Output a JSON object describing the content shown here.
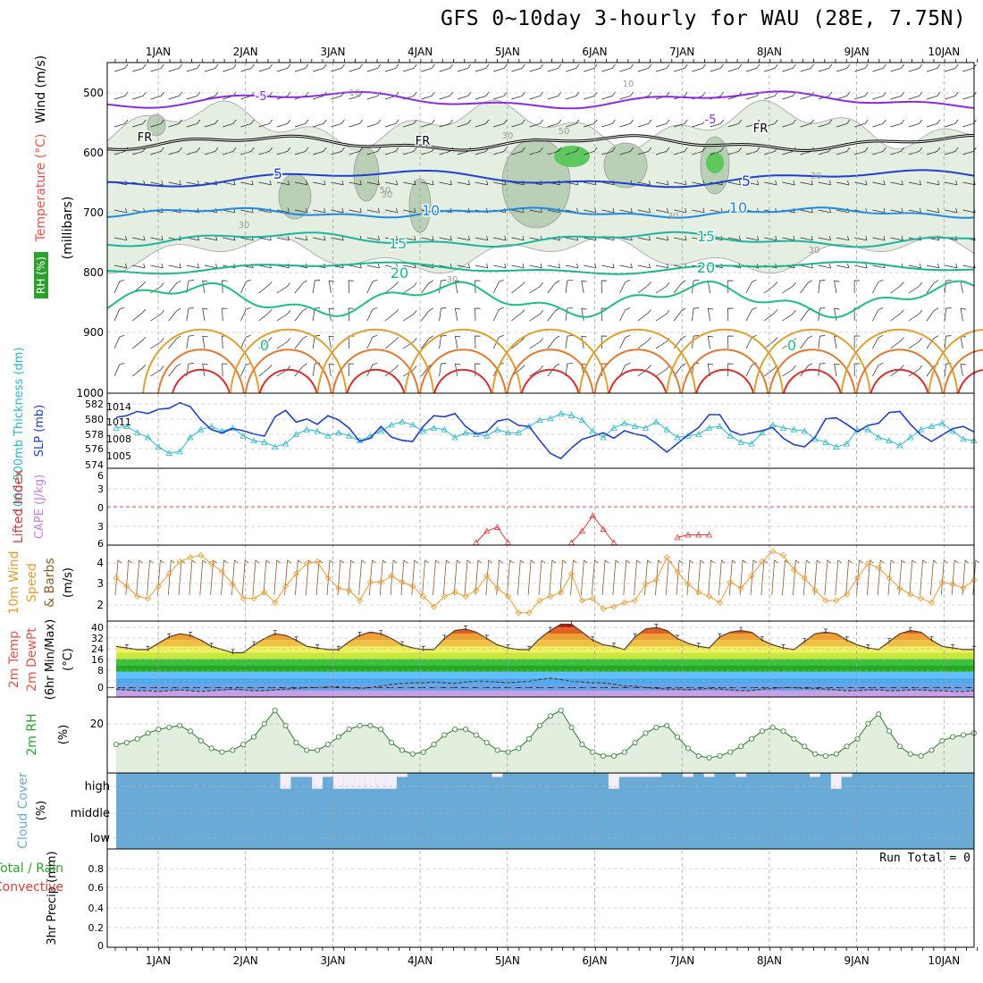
{
  "title": "GFS 0~10day 3-hourly for WAU (28E, 7.75N)",
  "days": [
    "1JAN",
    "2JAN",
    "3JAN",
    "4JAN",
    "5JAN",
    "6JAN",
    "7JAN",
    "8JAN",
    "9JAN",
    "10JAN"
  ],
  "colors": {
    "temperature_label": "#e8524a",
    "rh_label": "#2ca02c",
    "slp_line": "#1f3fc8",
    "thickness_line": "#29b8c8",
    "lifted_index": "#e03a3a",
    "cape_label": "#c080e0",
    "wind_speed_line": "#e89a30",
    "barb": "#8b5a2b",
    "cloud": "#6aaad6",
    "precip_total": "#2ca02c",
    "precip_conv": "#e03a3a"
  },
  "panels": {
    "upper": {
      "axis_title": "(millibars)",
      "label_wind": "Wind (m/s)",
      "label_temp": "Temperature (°C)",
      "label_rh": "RH (%)",
      "ticks": [
        "500",
        "600",
        "700",
        "800",
        "900",
        "1000"
      ],
      "contour_labels": [
        {
          "text": "-5"
        },
        {
          "text": "-5"
        },
        {
          "text": "FR"
        },
        {
          "text": "FR"
        },
        {
          "text": "FR"
        },
        {
          "text": "5"
        },
        {
          "text": "5"
        },
        {
          "text": "10"
        },
        {
          "text": "10"
        },
        {
          "text": "15"
        },
        {
          "text": "15"
        },
        {
          "text": "20"
        },
        {
          "text": "20"
        },
        {
          "text": "0"
        },
        {
          "text": "0"
        },
        {
          "text": "10"
        },
        {
          "text": "10"
        },
        {
          "text": "30"
        },
        {
          "text": "30"
        },
        {
          "text": "30"
        },
        {
          "text": "30"
        },
        {
          "text": "30"
        },
        {
          "text": "30"
        },
        {
          "text": "30"
        },
        {
          "text": "50"
        },
        {
          "text": "50"
        }
      ]
    },
    "slp": {
      "label_thickness": "1000-500mb Thickness (dm)",
      "label_slp": "SLP (mb)",
      "left_ticks": [
        "582",
        "580",
        "578",
        "576",
        "574"
      ],
      "right_ticks": [
        "1014",
        "1011",
        "1008",
        "1005"
      ]
    },
    "li": {
      "label_li": "Lifted Index",
      "label_cape": "CAPE (J/kg)",
      "ticks": [
        "6",
        "3",
        "0",
        "3",
        "6"
      ]
    },
    "wind10": {
      "label_a": "10m Wind",
      "label_b": "Speed",
      "label_c": "& Barbs",
      "units": "(m/s)",
      "ticks": [
        "4",
        "3",
        "2"
      ]
    },
    "temp2m": {
      "label_a": "2m Temp",
      "label_b": "2m DewPt",
      "label_c": "(6hr Min/Max)",
      "units": "(°C)",
      "ticks": [
        "40",
        "32",
        "24",
        "16",
        "8",
        "0"
      ]
    },
    "rh2m": {
      "label": "2m RH",
      "units": "(%)",
      "ticks": [
        "20"
      ]
    },
    "cloud": {
      "label": "Cloud Cover",
      "units": "(%)",
      "levels": [
        "high",
        "middle",
        "low"
      ]
    },
    "precip": {
      "label_a": "3hr Precip (mm)",
      "label_total": "Total / Rain",
      "label_conv": "Convective",
      "run_total": "Run Total = 0",
      "ticks": [
        "0",
        "0.2",
        "0.4",
        "0.6",
        "0.8"
      ]
    }
  },
  "chart_data": {
    "type": "line",
    "x_unit": "3-hourly steps starting 31DEC 18Z",
    "slp_mb": [
      1011.5,
      1011.8,
      1012.6,
      1012.2,
      1013.0,
      1013.2,
      1014.2,
      1013.5,
      1011.0,
      1009.2,
      1008.6,
      1009.4,
      1009.0,
      1008.4,
      1008.0,
      1011.6,
      1012.8,
      1010.6,
      1011.2,
      1010.2,
      1011.8,
      1011.0,
      1009.5,
      1007.0,
      1007.6,
      1009.8,
      1007.8,
      1007.2,
      1007.0,
      1009.8,
      1011.8,
      1011.6,
      1012.2,
      1009.8,
      1008.4,
      1008.8,
      1010.8,
      1011.2,
      1010.0,
      1009.8,
      1007.2,
      1004.8,
      1003.8,
      1005.8,
      1007.4,
      1008.0,
      1008.6,
      1007.6,
      1009.0,
      1008.4,
      1008.0,
      1006.6,
      1005.0,
      1006.6,
      1008.2,
      1009.6,
      1012.0,
      1012.0,
      1009.0,
      1008.2,
      1008.6,
      1009.0,
      1009.6,
      1007.6,
      1006.4,
      1006.0,
      1007.8,
      1011.2,
      1011.4,
      1010.2,
      1008.8,
      1010.0,
      1010.4,
      1012.4,
      1012.6,
      1010.2,
      1008.2,
      1007.0,
      1008.2,
      1009.4,
      1009.8,
      1008.8
    ],
    "thickness_dm": [
      578.6,
      578.8,
      578.0,
      577.4,
      576.2,
      575.4,
      575.6,
      577.4,
      578.4,
      578.8,
      578.2,
      578.6,
      577.6,
      577.0,
      576.8,
      576.2,
      576.6,
      577.8,
      578.4,
      578.2,
      577.6,
      578.0,
      577.6,
      577.0,
      577.6,
      578.2,
      579.0,
      579.4,
      579.0,
      578.2,
      578.6,
      578.4,
      577.4,
      578.0,
      577.8,
      577.6,
      578.4,
      578.0,
      578.0,
      578.8,
      579.6,
      579.8,
      580.4,
      580.2,
      579.6,
      578.2,
      577.4,
      578.6,
      579.2,
      578.8,
      578.6,
      579.4,
      578.4,
      577.4,
      577.6,
      577.8,
      578.6,
      578.8,
      577.6,
      576.8,
      576.6,
      578.0,
      579.0,
      578.6,
      578.4,
      578.2,
      577.2,
      576.8,
      576.2,
      576.6,
      578.4,
      578.4,
      577.4,
      577.0,
      576.4,
      577.4,
      578.4,
      578.8,
      579.2,
      578.2,
      577.2,
      577.0
    ],
    "wind10_ms": [
      3.3,
      2.9,
      2.4,
      2.3,
      2.9,
      3.5,
      4.1,
      4.3,
      4.4,
      4.0,
      3.6,
      3.0,
      2.3,
      2.3,
      2.6,
      2.1,
      2.9,
      3.5,
      4.0,
      4.1,
      3.3,
      2.8,
      2.7,
      2.2,
      3.1,
      3.1,
      3.4,
      3.1,
      2.9,
      2.4,
      1.9,
      2.4,
      2.6,
      2.4,
      2.7,
      3.4,
      2.8,
      2.4,
      1.6,
      1.6,
      2.2,
      2.4,
      2.6,
      3.5,
      2.2,
      2.3,
      1.8,
      1.9,
      2.1,
      2.2,
      3.0,
      3.2,
      4.3,
      3.6,
      3.0,
      2.6,
      2.4,
      2.1,
      3.1,
      2.8,
      3.4,
      4.1,
      4.6,
      4.4,
      3.7,
      3.3,
      2.7,
      2.2,
      2.2,
      2.5,
      3.3,
      4.0,
      3.8,
      3.3,
      2.8,
      2.5,
      2.3,
      2.1,
      3.1,
      3.0,
      2.8,
      3.2
    ],
    "temp2m_c": [
      26,
      25,
      24,
      24,
      28,
      32,
      34,
      33,
      30,
      26,
      24,
      22,
      22,
      27,
      31,
      34,
      33,
      30,
      26,
      25,
      24,
      24,
      29,
      33,
      35,
      34,
      31,
      27,
      25,
      24,
      24,
      31,
      36,
      37,
      35,
      31,
      27,
      25,
      24,
      24,
      31,
      36,
      40,
      40,
      35,
      30,
      27,
      26,
      24,
      32,
      37,
      38,
      36,
      31,
      28,
      26,
      25,
      32,
      35,
      36,
      35,
      30,
      27,
      25,
      24,
      29,
      34,
      35,
      34,
      30,
      27,
      25,
      24,
      29,
      34,
      36,
      35,
      30,
      26,
      25,
      24,
      24
    ],
    "dewpt2m_c": [
      -1,
      -1.5,
      -2,
      -2,
      -2.5,
      -2,
      -1.5,
      -2,
      -2.5,
      -2,
      -1.5,
      -1,
      -1.5,
      -2,
      -2,
      -1.5,
      -1,
      -0.5,
      0,
      0,
      0.5,
      0.5,
      0,
      -0.5,
      0,
      1,
      2,
      2.5,
      3,
      3,
      3.5,
      3,
      2.5,
      3.5,
      4,
      4,
      3.5,
      3,
      3.5,
      4,
      5,
      6,
      5,
      4,
      3.5,
      3,
      3,
      2,
      1,
      1,
      0,
      -0.5,
      -1,
      -1,
      -1.5,
      -1,
      -0.5,
      -1,
      -1.5,
      -2,
      -2,
      -1,
      -0.5,
      0,
      0,
      -0.5,
      -0.5,
      -1,
      -1.5,
      -2,
      -2,
      -1.5,
      -1.5,
      -2,
      -2,
      -1.5,
      -1.5,
      -2,
      -2,
      -2.5,
      -2.5,
      -2
    ],
    "rh2m_pct": [
      15,
      16,
      18,
      21,
      23,
      24,
      25,
      22,
      17,
      13,
      11,
      12,
      15,
      19,
      26,
      33,
      25,
      16,
      12,
      12,
      15,
      19,
      23,
      25,
      25,
      23,
      16,
      12,
      10,
      11,
      15,
      20,
      23,
      23,
      20,
      16,
      12,
      11,
      13,
      18,
      25,
      30,
      33,
      24,
      15,
      11,
      9,
      9,
      11,
      16,
      21,
      24,
      25,
      19,
      13,
      9,
      8,
      9,
      11,
      14,
      18,
      22,
      24,
      22,
      18,
      14,
      10,
      9,
      10,
      14,
      18,
      26,
      31,
      22,
      14,
      10,
      9,
      12,
      17,
      19,
      20,
      21
    ],
    "lifted_index_segments": [
      {
        "x": [
          34,
          35,
          36,
          37
        ],
        "y": [
          5.6,
          3.8,
          3.2,
          5.6
        ]
      },
      {
        "x": [
          43,
          44,
          45,
          46,
          47
        ],
        "y": [
          5.6,
          3.8,
          1.4,
          3.5,
          5.6
        ]
      },
      {
        "x": [
          53,
          54,
          55,
          56
        ],
        "y": [
          4.8,
          4.4,
          4.4,
          4.4
        ]
      }
    ],
    "cloud_high_pct": [
      0,
      0,
      0,
      0,
      0,
      0,
      0,
      0,
      0,
      0,
      0,
      0,
      0,
      0,
      0,
      0,
      80,
      20,
      20,
      80,
      20,
      80,
      80,
      80,
      80,
      80,
      80,
      20,
      0,
      0,
      0,
      0,
      0,
      0,
      0,
      0,
      20,
      0,
      0,
      0,
      0,
      0,
      0,
      0,
      0,
      0,
      0,
      80,
      20,
      20,
      20,
      20,
      0,
      0,
      20,
      0,
      20,
      0,
      0,
      20,
      0,
      0,
      0,
      0,
      0,
      0,
      20,
      0,
      80,
      20,
      0,
      0,
      0,
      0,
      0,
      0,
      0,
      0,
      0,
      0,
      0,
      0
    ],
    "cloud_mid_pct": 0,
    "cloud_low_pct": 0,
    "precip_mm": 0,
    "ylim": {
      "pressure": [
        450,
        1000
      ],
      "slp": [
        1002,
        1016
      ],
      "thickness": [
        573.5,
        583
      ],
      "li": [
        -6,
        6
      ],
      "wind10": [
        1.2,
        4.9
      ],
      "temp": [
        -6,
        42
      ],
      "rh": [
        0,
        40
      ],
      "precip": [
        0,
        1
      ]
    }
  }
}
